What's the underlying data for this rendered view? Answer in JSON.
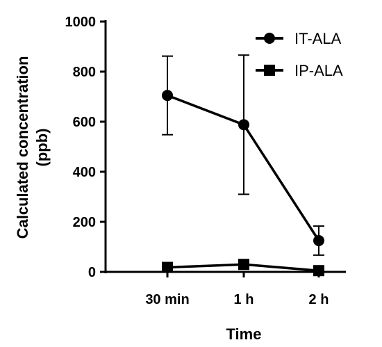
{
  "chart_data": {
    "type": "line",
    "title": "",
    "xlabel": "Time",
    "ylabel_lines": [
      "Calculated concentration",
      "(ppb)"
    ],
    "categories": [
      "30 min",
      "1 h",
      "2 h"
    ],
    "ylim": [
      0,
      1000
    ],
    "yticks": [
      "0",
      "200",
      "400",
      "600",
      "800",
      "1000"
    ],
    "legend_position": "top-right",
    "grid": false,
    "series": [
      {
        "name": "IT-ALA",
        "marker": "circle",
        "color": "#000000",
        "values": [
          705,
          588,
          125
        ],
        "error": [
          157,
          278,
          58
        ]
      },
      {
        "name": "IP-ALA",
        "marker": "square",
        "color": "#000000",
        "values": [
          18,
          30,
          5
        ],
        "error": [
          6,
          18,
          5
        ]
      }
    ]
  }
}
